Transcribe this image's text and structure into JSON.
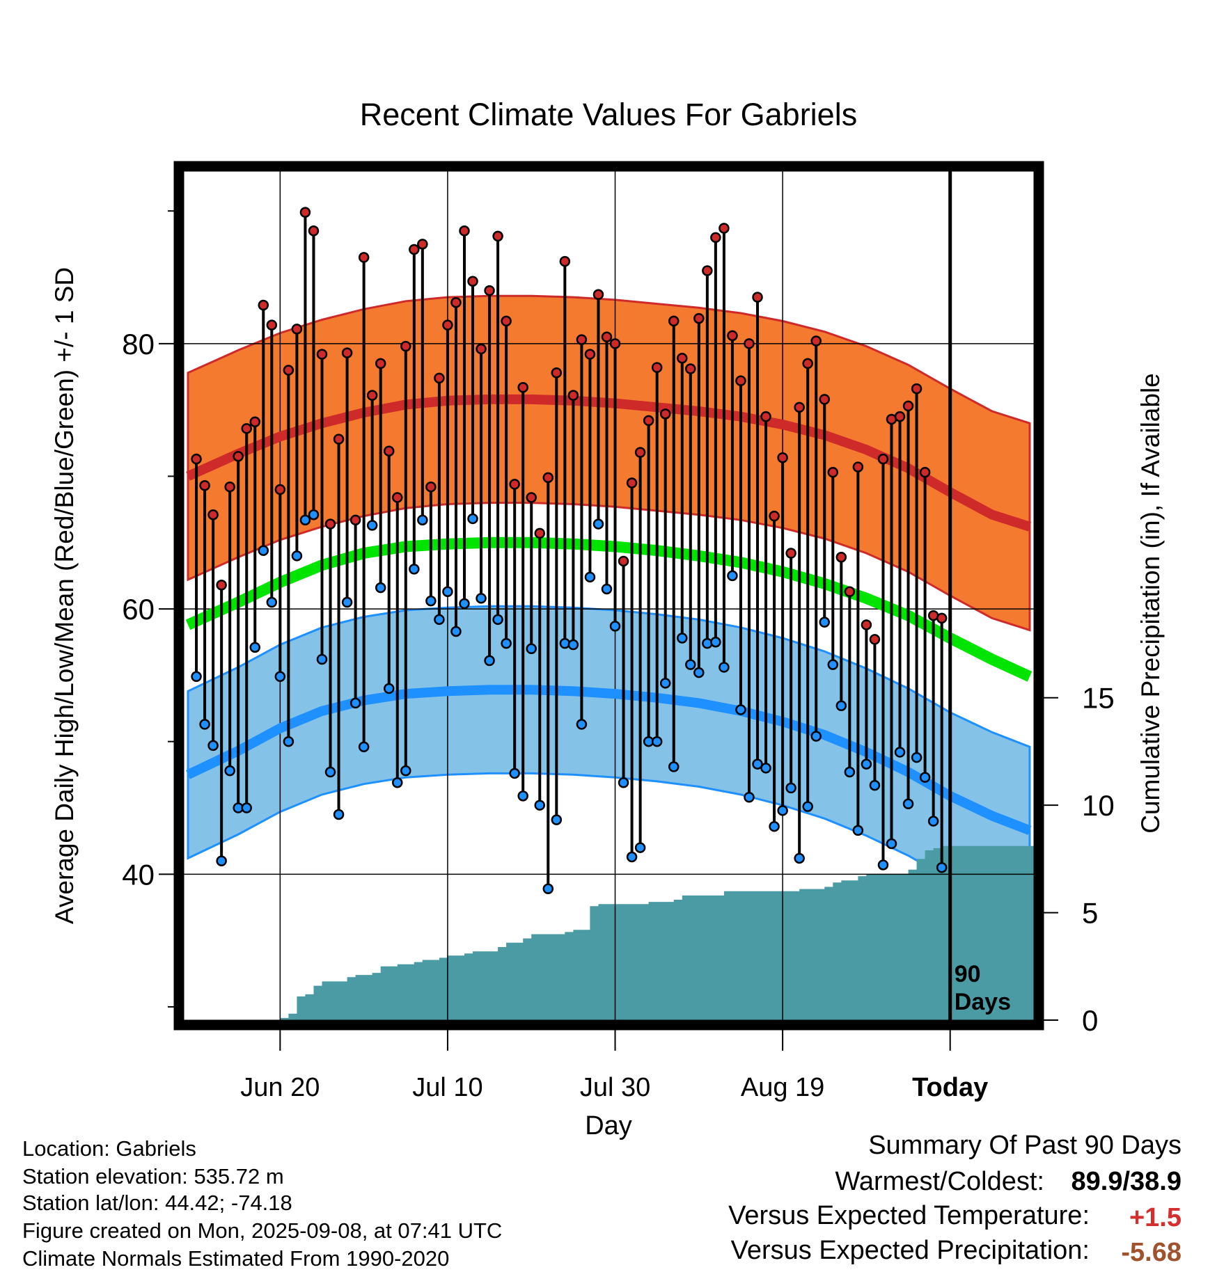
{
  "chart_data": {
    "type": "line",
    "title": "Recent Climate Values For Gabriels",
    "xlabel": "Day",
    "ylabel": "Average Daily High/Low/Mean (Red/Blue/Green) +/- 1 SD",
    "y2label": "Cumulative Precipitation (in), If Available",
    "ylim": [
      29,
      93
    ],
    "y2lim": [
      0,
      39.5
    ],
    "yticks": [
      "40",
      "60",
      "80"
    ],
    "y2ticks": [
      "0",
      "5",
      "10",
      "15"
    ],
    "xlim": [
      -11.5,
      90
    ],
    "xticks": [
      {
        "day": 0,
        "label": "Jun 20"
      },
      {
        "day": 20,
        "label": "Jul 10"
      },
      {
        "day": 40,
        "label": "Jul 30"
      },
      {
        "day": 60,
        "label": "Aug 19"
      },
      {
        "day": 80,
        "label": "Today"
      }
    ],
    "today_day": 80,
    "today_label_line1": "90",
    "today_label_line2": "Days",
    "normals": {
      "high_mean": [
        [
          -11,
          70.0
        ],
        [
          -5,
          71.7
        ],
        [
          0,
          73.0
        ],
        [
          5,
          74.0
        ],
        [
          10,
          74.8
        ],
        [
          15,
          75.4
        ],
        [
          20,
          75.7
        ],
        [
          25,
          75.8
        ],
        [
          30,
          75.8
        ],
        [
          35,
          75.7
        ],
        [
          40,
          75.5
        ],
        [
          45,
          75.2
        ],
        [
          50,
          74.9
        ],
        [
          55,
          74.5
        ],
        [
          60,
          73.9
        ],
        [
          65,
          73.1
        ],
        [
          70,
          72.0
        ],
        [
          75,
          70.6
        ],
        [
          80,
          68.8
        ],
        [
          85,
          67.1
        ],
        [
          89.5,
          66.2
        ]
      ],
      "high_sd": 7.8,
      "mean": [
        [
          -11,
          58.8
        ],
        [
          -5,
          60.5
        ],
        [
          0,
          62.0
        ],
        [
          5,
          63.3
        ],
        [
          10,
          64.2
        ],
        [
          15,
          64.7
        ],
        [
          20,
          64.9
        ],
        [
          25,
          65.0
        ],
        [
          30,
          65.0
        ],
        [
          35,
          64.9
        ],
        [
          40,
          64.7
        ],
        [
          45,
          64.4
        ],
        [
          50,
          64.0
        ],
        [
          55,
          63.5
        ],
        [
          60,
          62.8
        ],
        [
          65,
          61.9
        ],
        [
          70,
          60.8
        ],
        [
          75,
          59.5
        ],
        [
          80,
          57.8
        ],
        [
          85,
          56.2
        ],
        [
          89.5,
          54.9
        ]
      ],
      "low_mean": [
        [
          -11,
          47.5
        ],
        [
          -5,
          49.3
        ],
        [
          0,
          51.0
        ],
        [
          5,
          52.3
        ],
        [
          10,
          53.1
        ],
        [
          15,
          53.6
        ],
        [
          20,
          53.8
        ],
        [
          25,
          53.9
        ],
        [
          30,
          53.9
        ],
        [
          35,
          53.8
        ],
        [
          40,
          53.6
        ],
        [
          45,
          53.3
        ],
        [
          50,
          52.9
        ],
        [
          55,
          52.3
        ],
        [
          60,
          51.5
        ],
        [
          65,
          50.5
        ],
        [
          70,
          49.2
        ],
        [
          75,
          47.7
        ],
        [
          80,
          45.9
        ],
        [
          85,
          44.4
        ],
        [
          89.5,
          43.3
        ]
      ],
      "low_sd": 6.3,
      "colors": {
        "high_band": "#f47a30",
        "high_line": "#cf2a2a",
        "low_band": "#84c2e8",
        "low_line": "#1e90ff",
        "mean_line": "#00e400",
        "precip": "#4a9ba4"
      }
    },
    "daily": [
      {
        "day": -10,
        "high": 71.3,
        "low": 54.9
      },
      {
        "day": -9,
        "high": 69.3,
        "low": 51.3
      },
      {
        "day": -8,
        "high": 67.1,
        "low": 49.7
      },
      {
        "day": -7,
        "high": 61.8,
        "low": 41.0
      },
      {
        "day": -6,
        "high": 69.2,
        "low": 47.8
      },
      {
        "day": -5,
        "high": 71.5,
        "low": 45.0
      },
      {
        "day": -4,
        "high": 73.6,
        "low": 45.0
      },
      {
        "day": -3,
        "high": 74.1,
        "low": 57.1
      },
      {
        "day": -2,
        "high": 82.9,
        "low": 64.4
      },
      {
        "day": -1,
        "high": 81.4,
        "low": 60.5
      },
      {
        "day": 0,
        "high": 69.0,
        "low": 54.9
      },
      {
        "day": 1,
        "high": 78.0,
        "low": 50.0
      },
      {
        "day": 2,
        "high": 81.1,
        "low": 64.0
      },
      {
        "day": 3,
        "high": 89.9,
        "low": 66.7
      },
      {
        "day": 4,
        "high": 88.5,
        "low": 67.1
      },
      {
        "day": 5,
        "high": 79.2,
        "low": 56.2
      },
      {
        "day": 6,
        "high": 66.4,
        "low": 47.7
      },
      {
        "day": 7,
        "high": 72.8,
        "low": 44.5
      },
      {
        "day": 8,
        "high": 79.3,
        "low": 60.5
      },
      {
        "day": 9,
        "high": 66.7,
        "low": 52.9
      },
      {
        "day": 10,
        "high": 86.5,
        "low": 49.6
      },
      {
        "day": 11,
        "high": 76.1,
        "low": 66.3
      },
      {
        "day": 12,
        "high": 78.5,
        "low": 61.6
      },
      {
        "day": 13,
        "high": 71.9,
        "low": 54.0
      },
      {
        "day": 14,
        "high": 68.4,
        "low": 46.9
      },
      {
        "day": 15,
        "high": 79.8,
        "low": 47.8
      },
      {
        "day": 16,
        "high": 87.1,
        "low": 63.0
      },
      {
        "day": 17,
        "high": 87.5,
        "low": 66.7
      },
      {
        "day": 18,
        "high": 69.2,
        "low": 60.6
      },
      {
        "day": 19,
        "high": 77.4,
        "low": 59.2
      },
      {
        "day": 20,
        "high": 81.4,
        "low": 61.3
      },
      {
        "day": 21,
        "high": 83.1,
        "low": 58.3
      },
      {
        "day": 22,
        "high": 88.5,
        "low": 60.4
      },
      {
        "day": 23,
        "high": 84.7,
        "low": 66.8
      },
      {
        "day": 24,
        "high": 79.6,
        "low": 60.8
      },
      {
        "day": 25,
        "high": 84.0,
        "low": 56.1
      },
      {
        "day": 26,
        "high": 88.1,
        "low": 59.2
      },
      {
        "day": 27,
        "high": 81.7,
        "low": 57.4
      },
      {
        "day": 28,
        "high": 69.4,
        "low": 47.6
      },
      {
        "day": 29,
        "high": 76.7,
        "low": 45.9
      },
      {
        "day": 30,
        "high": 68.4,
        "low": 57.0
      },
      {
        "day": 31,
        "high": 65.7,
        "low": 45.2
      },
      {
        "day": 32,
        "high": 69.9,
        "low": 38.9
      },
      {
        "day": 33,
        "high": 77.8,
        "low": 44.1
      },
      {
        "day": 34,
        "high": 86.2,
        "low": 57.4
      },
      {
        "day": 35,
        "high": 76.1,
        "low": 57.3
      },
      {
        "day": 36,
        "high": 80.3,
        "low": 51.3
      },
      {
        "day": 37,
        "high": 79.2,
        "low": 62.4
      },
      {
        "day": 38,
        "high": 83.7,
        "low": 66.4
      },
      {
        "day": 39,
        "high": 80.5,
        "low": 61.5
      },
      {
        "day": 40,
        "high": 80.0,
        "low": 58.7
      },
      {
        "day": 41,
        "high": 63.6,
        "low": 46.9
      },
      {
        "day": 42,
        "high": 69.5,
        "low": 41.3
      },
      {
        "day": 43,
        "high": 71.8,
        "low": 42.0
      },
      {
        "day": 44,
        "high": 74.2,
        "low": 50.0
      },
      {
        "day": 45,
        "high": 78.2,
        "low": 50.0
      },
      {
        "day": 46,
        "high": 74.7,
        "low": 54.4
      },
      {
        "day": 47,
        "high": 81.7,
        "low": 48.1
      },
      {
        "day": 48,
        "high": 78.9,
        "low": 57.8
      },
      {
        "day": 49,
        "high": 78.1,
        "low": 55.8
      },
      {
        "day": 50,
        "high": 81.9,
        "low": 55.2
      },
      {
        "day": 51,
        "high": 85.5,
        "low": 57.4
      },
      {
        "day": 52,
        "high": 88.0,
        "low": 57.5
      },
      {
        "day": 53,
        "high": 88.7,
        "low": 55.6
      },
      {
        "day": 54,
        "high": 80.6,
        "low": 62.5
      },
      {
        "day": 55,
        "high": 77.2,
        "low": 52.4
      },
      {
        "day": 56,
        "high": 80.0,
        "low": 45.8
      },
      {
        "day": 57,
        "high": 83.5,
        "low": 48.3
      },
      {
        "day": 58,
        "high": 74.5,
        "low": 48.0
      },
      {
        "day": 59,
        "high": 67.0,
        "low": 43.6
      },
      {
        "day": 60,
        "high": 71.4,
        "low": 44.8
      },
      {
        "day": 61,
        "high": 64.2,
        "low": 46.5
      },
      {
        "day": 62,
        "high": 75.2,
        "low": 41.2
      },
      {
        "day": 63,
        "high": 78.5,
        "low": 45.1
      },
      {
        "day": 64,
        "high": 80.2,
        "low": 50.4
      },
      {
        "day": 65,
        "high": 75.8,
        "low": 59.0
      },
      {
        "day": 66,
        "high": 70.3,
        "low": 55.8
      },
      {
        "day": 67,
        "high": 63.9,
        "low": 52.7
      },
      {
        "day": 68,
        "high": 61.3,
        "low": 47.7
      },
      {
        "day": 69,
        "high": 70.7,
        "low": 43.3
      },
      {
        "day": 70,
        "high": 58.8,
        "low": 48.3
      },
      {
        "day": 71,
        "high": 57.7,
        "low": 46.7
      },
      {
        "day": 72,
        "high": 71.3,
        "low": 40.7
      },
      {
        "day": 73,
        "high": 74.3,
        "low": 42.3
      },
      {
        "day": 74,
        "high": 74.5,
        "low": 49.2
      },
      {
        "day": 75,
        "high": 75.3,
        "low": 45.3
      },
      {
        "day": 76,
        "high": 76.6,
        "low": 48.8
      },
      {
        "day": 77,
        "high": 70.3,
        "low": 47.3
      },
      {
        "day": 78,
        "high": 59.5,
        "low": 44.0
      },
      {
        "day": 79,
        "high": 59.3,
        "low": 40.5
      }
    ],
    "precip_cumulative": [
      [
        -11.5,
        0.0
      ],
      [
        -1,
        0.0
      ],
      [
        0,
        0.1
      ],
      [
        1,
        0.3
      ],
      [
        2,
        1.1
      ],
      [
        3,
        1.2
      ],
      [
        4,
        1.6
      ],
      [
        5,
        1.8
      ],
      [
        6,
        1.8
      ],
      [
        7,
        1.8
      ],
      [
        8,
        2.0
      ],
      [
        9,
        2.1
      ],
      [
        10,
        2.1
      ],
      [
        11,
        2.2
      ],
      [
        12,
        2.5
      ],
      [
        13,
        2.5
      ],
      [
        14,
        2.6
      ],
      [
        15,
        2.6
      ],
      [
        16,
        2.7
      ],
      [
        17,
        2.8
      ],
      [
        18,
        2.8
      ],
      [
        19,
        2.9
      ],
      [
        20,
        3.0
      ],
      [
        21,
        3.0
      ],
      [
        22,
        3.1
      ],
      [
        23,
        3.2
      ],
      [
        24,
        3.2
      ],
      [
        25,
        3.2
      ],
      [
        26,
        3.4
      ],
      [
        27,
        3.6
      ],
      [
        28,
        3.6
      ],
      [
        29,
        3.8
      ],
      [
        30,
        4.0
      ],
      [
        31,
        4.0
      ],
      [
        32,
        4.0
      ],
      [
        33,
        4.0
      ],
      [
        34,
        4.1
      ],
      [
        35,
        4.2
      ],
      [
        36,
        4.2
      ],
      [
        37,
        5.3
      ],
      [
        38,
        5.4
      ],
      [
        39,
        5.4
      ],
      [
        40,
        5.4
      ],
      [
        41,
        5.4
      ],
      [
        42,
        5.4
      ],
      [
        43,
        5.4
      ],
      [
        44,
        5.5
      ],
      [
        45,
        5.5
      ],
      [
        46,
        5.5
      ],
      [
        47,
        5.6
      ],
      [
        48,
        5.8
      ],
      [
        49,
        5.8
      ],
      [
        50,
        5.8
      ],
      [
        51,
        5.8
      ],
      [
        52,
        5.8
      ],
      [
        53,
        6.0
      ],
      [
        54,
        6.0
      ],
      [
        55,
        6.0
      ],
      [
        56,
        6.0
      ],
      [
        57,
        6.0
      ],
      [
        58,
        6.0
      ],
      [
        59,
        6.0
      ],
      [
        60,
        6.0
      ],
      [
        61,
        6.0
      ],
      [
        62,
        6.1
      ],
      [
        63,
        6.1
      ],
      [
        64,
        6.1
      ],
      [
        65,
        6.2
      ],
      [
        66,
        6.4
      ],
      [
        67,
        6.5
      ],
      [
        68,
        6.5
      ],
      [
        69,
        6.7
      ],
      [
        70,
        6.8
      ],
      [
        71,
        6.8
      ],
      [
        72,
        6.8
      ],
      [
        73,
        6.8
      ],
      [
        74,
        6.8
      ],
      [
        75,
        7.0
      ],
      [
        76,
        7.5
      ],
      [
        77,
        7.9
      ],
      [
        78,
        8.0
      ],
      [
        79,
        8.1
      ],
      [
        80,
        8.1
      ],
      [
        90,
        8.1
      ]
    ]
  },
  "info": {
    "location": "Location: Gabriels",
    "elevation": "Station elevation: 535.72 m",
    "latlon": "Station lat/lon: 44.42; -74.18",
    "created": "Figure created on Mon, 2025-09-08, at 07:41 UTC",
    "normals_note": "Climate Normals Estimated From 1990-2020"
  },
  "summary": {
    "title": "Summary Of Past 90 Days",
    "warmest_label": "Warmest/Coldest:",
    "warmest_value": "89.9/38.9",
    "temp_label": "Versus Expected Temperature:",
    "temp_value": "+1.5",
    "temp_color": "#d32f2f",
    "precip_label": "Versus Expected Precipitation:",
    "precip_value": "-5.68",
    "precip_color": "#a0522d"
  }
}
